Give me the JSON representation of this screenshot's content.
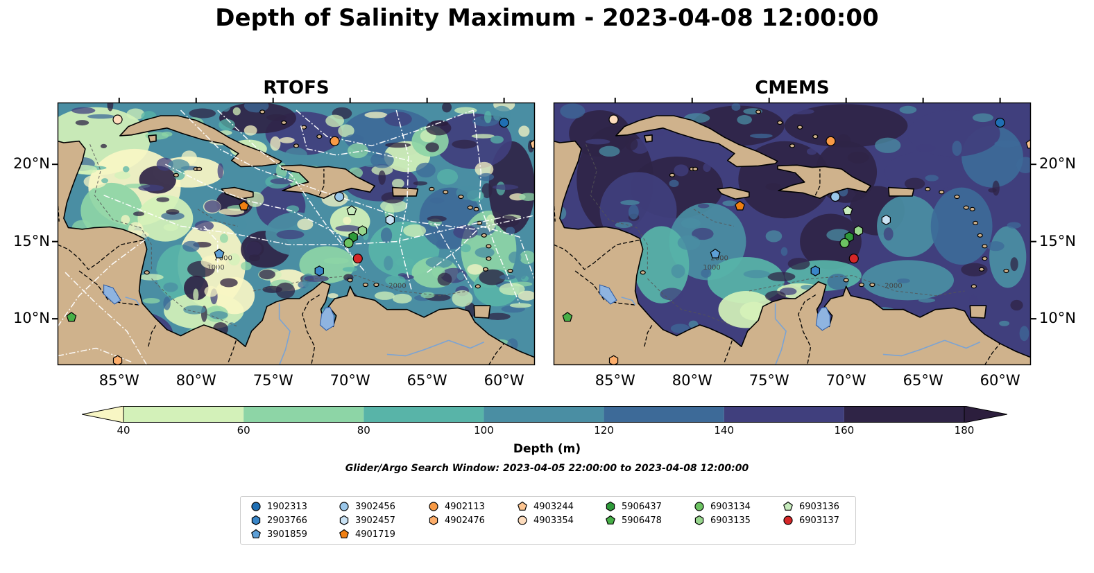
{
  "title": "Depth of Salinity Maximum - 2023-04-08 12:00:00",
  "panels": [
    {
      "title": "RTOFS",
      "key": "rtofs"
    },
    {
      "title": "CMEMS",
      "key": "cmems"
    }
  ],
  "map_extent": {
    "lon": [
      -89,
      -58
    ],
    "lat": [
      7,
      24
    ]
  },
  "lon_ticks": [
    {
      "value": -85,
      "label": "85°W"
    },
    {
      "value": -80,
      "label": "80°W"
    },
    {
      "value": -75,
      "label": "75°W"
    },
    {
      "value": -70,
      "label": "70°W"
    },
    {
      "value": -65,
      "label": "65°W"
    },
    {
      "value": -60,
      "label": "60°W"
    }
  ],
  "lat_ticks": [
    {
      "value": 20,
      "label": "20°N"
    },
    {
      "value": 15,
      "label": "15°N"
    },
    {
      "value": 10,
      "label": "10°N"
    }
  ],
  "contour_labels": [
    "1000",
    "2000"
  ],
  "colorbar": {
    "label": "Depth (m)",
    "ticks": [
      "40",
      "60",
      "80",
      "100",
      "120",
      "140",
      "160",
      "180"
    ],
    "extend": "both",
    "colors": [
      "#f8f6c4",
      "#d3f1b9",
      "#8dd5a6",
      "#58b4a8",
      "#4a8ea3",
      "#3d6a98",
      "#403f7d",
      "#2f2446",
      "#2c1e3d"
    ]
  },
  "land_color": "#cfb28c",
  "lake_color": "#8fb4e0",
  "search_window": "Glider/Argo Search Window: 2023-04-05 22:00:00 to 2023-04-08 12:00:00",
  "legend": [
    {
      "id": "1902313",
      "marker": "circle",
      "color": "#1f6fb4"
    },
    {
      "id": "2903766",
      "marker": "hexagon",
      "color": "#3a86c8"
    },
    {
      "id": "3901859",
      "marker": "pentagon",
      "color": "#5d9fd6"
    },
    {
      "id": "3902456",
      "marker": "circle",
      "color": "#9ac7ea"
    },
    {
      "id": "3902457",
      "marker": "hexagon",
      "color": "#c9e2f4"
    },
    {
      "id": "4901719",
      "marker": "pentagon",
      "color": "#f07f12"
    },
    {
      "id": "4902113",
      "marker": "circle",
      "color": "#f89a45"
    },
    {
      "id": "4902476",
      "marker": "hexagon",
      "color": "#fdae6b"
    },
    {
      "id": "4903244",
      "marker": "pentagon",
      "color": "#fdc591"
    },
    {
      "id": "4903354",
      "marker": "circle",
      "color": "#fddcbd"
    },
    {
      "id": "5906437",
      "marker": "hexagon",
      "color": "#2e9a3a"
    },
    {
      "id": "5906478",
      "marker": "pentagon",
      "color": "#47af47"
    },
    {
      "id": "6903134",
      "marker": "circle",
      "color": "#6cc362"
    },
    {
      "id": "6903135",
      "marker": "hexagon",
      "color": "#98d68d"
    },
    {
      "id": "6903136",
      "marker": "pentagon",
      "color": "#c7ecbd"
    },
    {
      "id": "6903137",
      "marker": "circle",
      "color": "#d62728"
    }
  ],
  "floats": [
    {
      "id": "1902313",
      "lon": -60.0,
      "lat": 22.7
    },
    {
      "id": "2903766",
      "lon": -72.0,
      "lat": 13.1
    },
    {
      "id": "3901859",
      "lon": -78.5,
      "lat": 14.2
    },
    {
      "id": "3902456",
      "lon": -70.7,
      "lat": 17.9
    },
    {
      "id": "3902457",
      "lon": -67.4,
      "lat": 16.4
    },
    {
      "id": "4901719",
      "lon": -76.9,
      "lat": 17.3
    },
    {
      "id": "4902113",
      "lon": -71.0,
      "lat": 21.5
    },
    {
      "id": "4902476",
      "lon": -85.1,
      "lat": 7.3
    },
    {
      "id": "4903244",
      "lon": -58.0,
      "lat": 21.3
    },
    {
      "id": "4903354",
      "lon": -85.1,
      "lat": 22.9
    },
    {
      "id": "5906437",
      "lon": -69.8,
      "lat": 15.3
    },
    {
      "id": "5906478",
      "lon": -88.1,
      "lat": 10.1
    },
    {
      "id": "6903134",
      "lon": -70.1,
      "lat": 14.9
    },
    {
      "id": "6903135",
      "lon": -69.2,
      "lat": 15.7
    },
    {
      "id": "6903136",
      "lon": -69.9,
      "lat": 17.0
    },
    {
      "id": "6903137",
      "lon": -69.5,
      "lat": 13.9
    }
  ]
}
